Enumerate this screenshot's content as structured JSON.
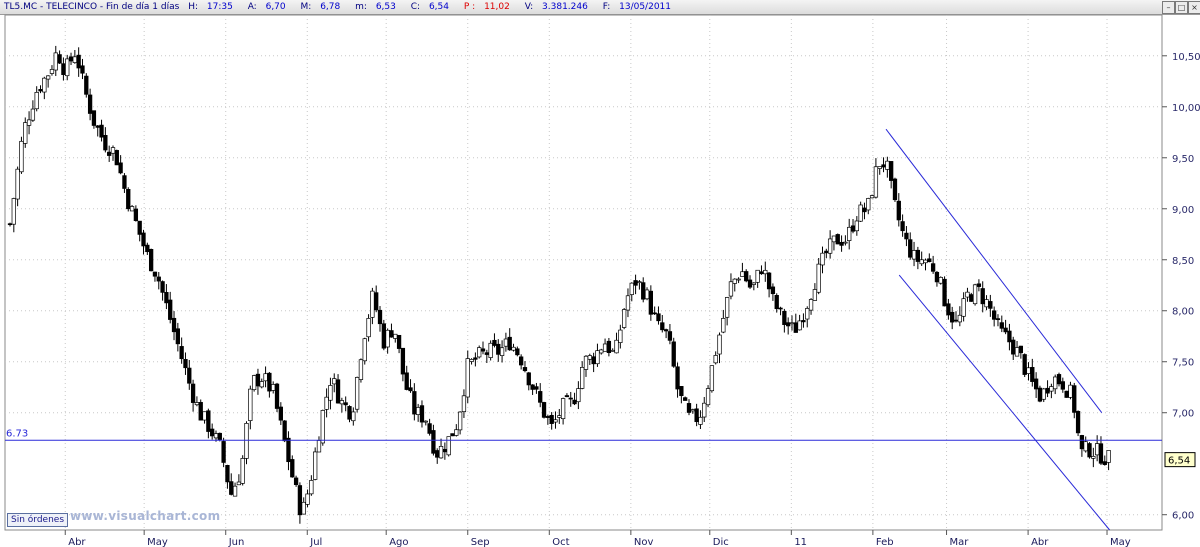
{
  "header": {
    "ticker": "TL5.MC - TELECINCO - Fin de día 1 días",
    "h_label": "H:",
    "h_value": "17:35",
    "a_label": "A:",
    "a_value": "6,70",
    "m_label": "M:",
    "m_value": "6,78",
    "min_label": "m:",
    "min_value": "6,53",
    "c_label": "C:",
    "c_value": "6,54",
    "p_label": "P :",
    "p_value": "11,02",
    "v_label": "V:",
    "v_value": "3.381.246",
    "f_label": "F:",
    "f_value": "13/05/2011",
    "icons": [
      "minimize-icon",
      "maximize-icon",
      "close-icon"
    ]
  },
  "footer": {
    "status_button": "Sin órdenes",
    "watermark": "www.visualchart.com"
  },
  "chart_data": {
    "type": "candlestick",
    "ylim": [
      5.85,
      10.9
    ],
    "y_ticks": [
      "10,50",
      "10,00",
      "9,50",
      "9,00",
      "8,50",
      "8,00",
      "7,50",
      "7,00",
      "6,00"
    ],
    "y_tick_values": [
      10.5,
      10.0,
      9.5,
      9.0,
      8.5,
      8.0,
      7.5,
      7.0,
      6.0
    ],
    "x_ticks": [
      "Abr",
      "May",
      "Jun",
      "Jul",
      "Ago",
      "Sep",
      "Oct",
      "Nov",
      "Dic",
      "11",
      "Feb",
      "Mar",
      "Abr",
      "May"
    ],
    "x_tick_days": [
      21,
      51,
      82,
      113,
      143,
      174,
      205,
      236,
      266,
      297,
      328,
      356,
      387,
      417
    ],
    "x_domain": [
      0,
      436
    ],
    "close_series": [
      [
        0,
        8.85
      ],
      [
        5,
        9.75
      ],
      [
        10,
        10.15
      ],
      [
        15,
        10.35
      ],
      [
        18,
        10.55
      ],
      [
        21,
        10.35
      ],
      [
        25,
        10.55
      ],
      [
        28,
        10.2
      ],
      [
        32,
        9.85
      ],
      [
        36,
        9.65
      ],
      [
        40,
        9.55
      ],
      [
        44,
        9.15
      ],
      [
        48,
        8.85
      ],
      [
        52,
        8.55
      ],
      [
        56,
        8.35
      ],
      [
        60,
        8.0
      ],
      [
        64,
        7.65
      ],
      [
        68,
        7.3
      ],
      [
        72,
        7.0
      ],
      [
        76,
        6.85
      ],
      [
        80,
        6.65
      ],
      [
        84,
        6.2
      ],
      [
        88,
        6.45
      ],
      [
        92,
        7.3
      ],
      [
        96,
        7.35
      ],
      [
        100,
        7.2
      ],
      [
        104,
        6.75
      ],
      [
        108,
        6.3
      ],
      [
        111,
        6.0
      ],
      [
        114,
        6.3
      ],
      [
        118,
        6.9
      ],
      [
        122,
        7.35
      ],
      [
        126,
        7.1
      ],
      [
        130,
        7.0
      ],
      [
        134,
        7.7
      ],
      [
        138,
        8.15
      ],
      [
        142,
        7.7
      ],
      [
        146,
        7.85
      ],
      [
        150,
        7.3
      ],
      [
        154,
        7.0
      ],
      [
        158,
        6.95
      ],
      [
        162,
        6.6
      ],
      [
        166,
        6.7
      ],
      [
        170,
        6.9
      ],
      [
        174,
        7.45
      ],
      [
        178,
        7.55
      ],
      [
        182,
        7.6
      ],
      [
        186,
        7.6
      ],
      [
        190,
        7.7
      ],
      [
        194,
        7.55
      ],
      [
        198,
        7.3
      ],
      [
        202,
        7.05
      ],
      [
        206,
        6.85
      ],
      [
        210,
        7.05
      ],
      [
        214,
        7.1
      ],
      [
        218,
        7.5
      ],
      [
        222,
        7.55
      ],
      [
        226,
        7.7
      ],
      [
        230,
        7.55
      ],
      [
        234,
        8.1
      ],
      [
        238,
        8.3
      ],
      [
        242,
        8.15
      ],
      [
        246,
        7.85
      ],
      [
        250,
        7.75
      ],
      [
        254,
        7.2
      ],
      [
        258,
        6.95
      ],
      [
        262,
        6.95
      ],
      [
        266,
        7.35
      ],
      [
        270,
        7.8
      ],
      [
        274,
        8.25
      ],
      [
        278,
        8.4
      ],
      [
        282,
        8.2
      ],
      [
        286,
        8.45
      ],
      [
        290,
        8.1
      ],
      [
        294,
        7.9
      ],
      [
        298,
        7.8
      ],
      [
        302,
        8.0
      ],
      [
        306,
        8.3
      ],
      [
        310,
        8.55
      ],
      [
        314,
        8.7
      ],
      [
        318,
        8.7
      ],
      [
        322,
        8.95
      ],
      [
        326,
        9.0
      ],
      [
        330,
        9.45
      ],
      [
        333,
        9.45
      ],
      [
        336,
        9.05
      ],
      [
        340,
        8.7
      ],
      [
        344,
        8.5
      ],
      [
        348,
        8.5
      ],
      [
        352,
        8.4
      ],
      [
        356,
        8.05
      ],
      [
        360,
        7.85
      ],
      [
        364,
        8.15
      ],
      [
        368,
        8.2
      ],
      [
        372,
        8.05
      ],
      [
        376,
        7.8
      ],
      [
        380,
        7.7
      ],
      [
        384,
        7.55
      ],
      [
        388,
        7.3
      ],
      [
        392,
        7.15
      ],
      [
        396,
        7.35
      ],
      [
        400,
        7.3
      ],
      [
        404,
        7.15
      ],
      [
        407,
        6.6
      ],
      [
        410,
        6.65
      ],
      [
        414,
        6.6
      ],
      [
        418,
        6.54
      ]
    ],
    "horizontal_line": {
      "value": 6.73,
      "label": "6.73",
      "color": "#2a2ad8"
    },
    "channel_lines": [
      {
        "from": [
          333,
          9.78
        ],
        "to": [
          415,
          7.0
        ],
        "color": "#2a2ad8"
      },
      {
        "from": [
          338,
          8.35
        ],
        "to": [
          418,
          5.85
        ],
        "color": "#2a2ad8"
      }
    ],
    "last_price_label": "6,54",
    "colors": {
      "up": "#ffffff",
      "down": "#000000",
      "wick": "#000000",
      "grid": "#c8c8c8"
    }
  }
}
